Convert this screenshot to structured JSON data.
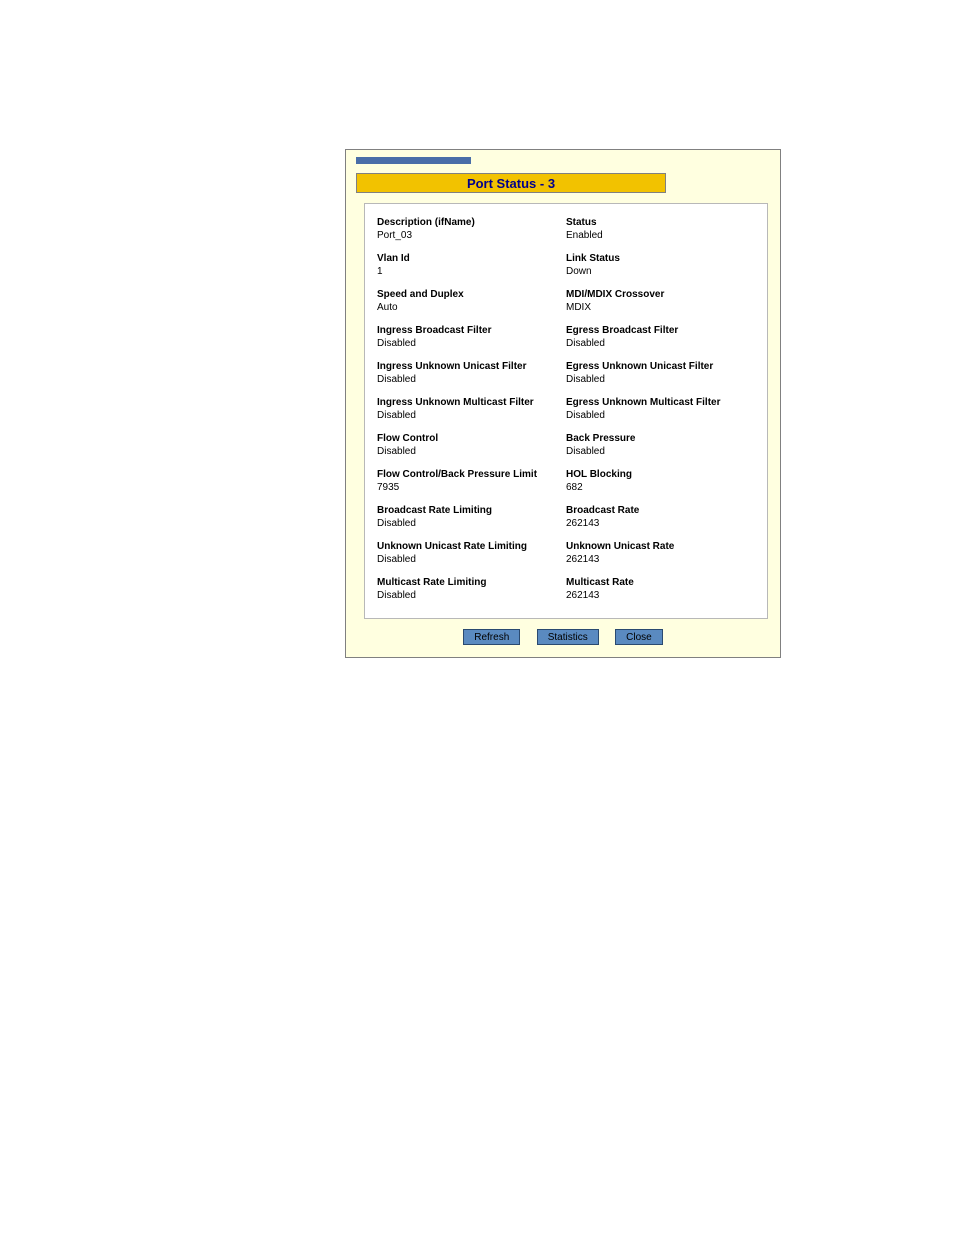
{
  "dialog": {
    "title": "Port Status - 3",
    "colors": {
      "background": "#ffffe0",
      "title_bg": "#f2c200",
      "title_text": "#00008b",
      "tab_accent": "#4a6ea8",
      "panel_bg": "#ffffff",
      "panel_border": "#b8b8b8",
      "button_bg": "#5a8ac0",
      "button_border": "#2a4a70",
      "text": "#000000"
    },
    "rows": [
      {
        "left": {
          "label": "Description (ifName)",
          "value": "Port_03"
        },
        "right": {
          "label": "Status",
          "value": "Enabled"
        }
      },
      {
        "left": {
          "label": "Vlan Id",
          "value": "1"
        },
        "right": {
          "label": "Link Status",
          "value": "Down"
        }
      },
      {
        "left": {
          "label": "Speed and Duplex",
          "value": "Auto"
        },
        "right": {
          "label": "MDI/MDIX Crossover",
          "value": "MDIX"
        }
      },
      {
        "left": {
          "label": "Ingress Broadcast Filter",
          "value": "Disabled"
        },
        "right": {
          "label": "Egress Broadcast Filter",
          "value": "Disabled"
        }
      },
      {
        "left": {
          "label": "Ingress Unknown Unicast Filter",
          "value": "Disabled"
        },
        "right": {
          "label": "Egress Unknown Unicast Filter",
          "value": "Disabled"
        }
      },
      {
        "left": {
          "label": "Ingress Unknown Multicast Filter",
          "value": "Disabled"
        },
        "right": {
          "label": "Egress Unknown Multicast Filter",
          "value": "Disabled"
        }
      },
      {
        "left": {
          "label": "Flow Control",
          "value": "Disabled"
        },
        "right": {
          "label": "Back Pressure",
          "value": "Disabled"
        }
      },
      {
        "left": {
          "label": "Flow Control/Back Pressure Limit",
          "value": "7935"
        },
        "right": {
          "label": "HOL Blocking",
          "value": "682"
        }
      },
      {
        "left": {
          "label": "Broadcast Rate Limiting",
          "value": "Disabled"
        },
        "right": {
          "label": "Broadcast Rate",
          "value": "262143"
        }
      },
      {
        "left": {
          "label": "Unknown Unicast Rate Limiting",
          "value": "Disabled"
        },
        "right": {
          "label": "Unknown Unicast Rate",
          "value": "262143"
        }
      },
      {
        "left": {
          "label": "Multicast Rate Limiting",
          "value": "Disabled"
        },
        "right": {
          "label": "Multicast Rate",
          "value": "262143"
        }
      }
    ],
    "buttons": {
      "refresh": "Refresh",
      "statistics": "Statistics",
      "close": "Close"
    }
  }
}
